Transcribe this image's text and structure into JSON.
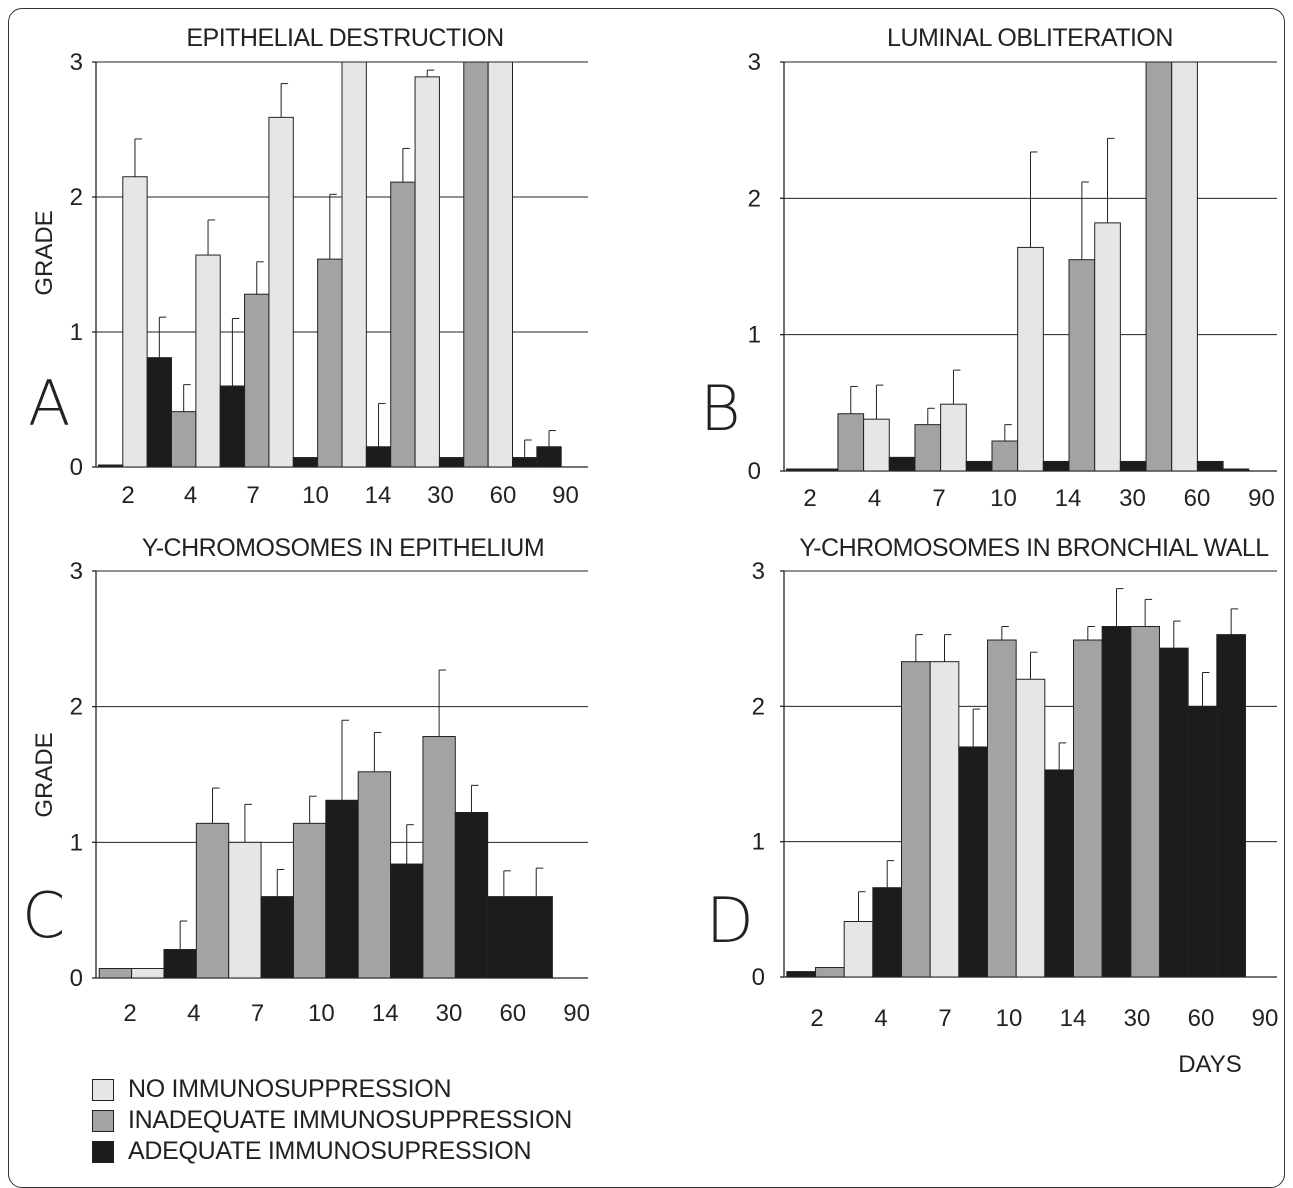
{
  "legend": {
    "none_label": "NO IMMUNOSUPPRESSION",
    "inadequate_label": "INADEQUATE IMMUNOSUPPRESSION",
    "adequate_label": "ADEQUATE IMMUNOSUPRESSION"
  },
  "colors": {
    "none": "#e6e6e6",
    "inadequate": "#a3a3a3",
    "adequate": "#1c1c1c"
  },
  "days_label": "DAYS",
  "chart_data": [
    {
      "type": "bar",
      "panel_letter": "A",
      "title": "EPITHELIAL DESTRUCTION",
      "ylabel": "GRADE",
      "xlabel": "",
      "ylim": [
        0,
        3
      ],
      "yticks": [
        "0",
        "1",
        "2",
        "3"
      ],
      "categories": [
        "2",
        "4",
        "7",
        "10",
        "14",
        "30",
        "60",
        "90"
      ],
      "series": [
        {
          "name": "NO IMMUNOSUPPRESSION",
          "values": [
            2.15,
            1.57,
            2.59,
            3.0,
            2.89,
            3.0,
            null,
            null
          ],
          "errors": [
            0.28,
            0.26,
            0.25,
            0,
            0.05,
            0,
            null,
            null
          ]
        },
        {
          "name": "INADEQUATE IMMUNOSUPPRESSION",
          "values": [
            null,
            0.41,
            1.28,
            1.54,
            2.11,
            3.0,
            null,
            null
          ],
          "errors": [
            null,
            0.2,
            0.24,
            0.48,
            0.25,
            0,
            null,
            null
          ]
        },
        {
          "name": "ADEQUATE IMMUNOSUPRESSION",
          "values": [
            0.01,
            0.81,
            0.6,
            0.07,
            0.15,
            0.07,
            0.07,
            0.15
          ],
          "errors": [
            0,
            0.3,
            0.5,
            0,
            0.32,
            0,
            0.13,
            0.12
          ]
        }
      ],
      "grid": true
    },
    {
      "type": "bar",
      "panel_letter": "B",
      "title": "LUMINAL OBLITERATION",
      "ylabel": "",
      "xlabel": "",
      "ylim": [
        0,
        3
      ],
      "yticks": [
        "0",
        "1",
        "2",
        "3"
      ],
      "categories": [
        "2",
        "4",
        "7",
        "10",
        "14",
        "30",
        "60",
        "90"
      ],
      "series": [
        {
          "name": "NO IMMUNOSUPPRESSION",
          "values": [
            null,
            0.38,
            0.49,
            1.64,
            1.82,
            3.0,
            null,
            null
          ],
          "errors": [
            null,
            0.25,
            0.25,
            0.7,
            0.62,
            0,
            null,
            null
          ]
        },
        {
          "name": "INADEQUATE IMMUNOSUPPRESSION",
          "values": [
            null,
            0.42,
            0.34,
            0.22,
            1.55,
            3.0,
            null,
            null
          ],
          "errors": [
            null,
            0.2,
            0.12,
            0.12,
            0.57,
            0,
            null,
            null
          ]
        },
        {
          "name": "ADEQUATE IMMUNOSUPRESSION",
          "values": [
            0.0,
            0.01,
            0.1,
            0.07,
            0.07,
            0.07,
            0.07,
            0.0
          ],
          "errors": [
            0,
            0,
            0,
            0,
            0,
            0,
            0,
            0
          ]
        }
      ],
      "grid": true
    },
    {
      "type": "bar",
      "panel_letter": "C",
      "title": "Y-CHROMOSOMES IN EPITHELIUM",
      "ylabel": "GRADE",
      "xlabel": "",
      "ylim": [
        0,
        3
      ],
      "yticks": [
        "0",
        "1",
        "2",
        "3"
      ],
      "categories": [
        "2",
        "4",
        "7",
        "10",
        "14",
        "30",
        "60",
        "90"
      ],
      "series": [
        {
          "name": "NO IMMUNOSUPPRESSION",
          "values": [
            0.07,
            1.0,
            null,
            null,
            null,
            null,
            null,
            null
          ],
          "errors": [
            0,
            0.28,
            null,
            null,
            null,
            null,
            null,
            null
          ]
        },
        {
          "name": "INADEQUATE IMMUNOSUPPRESSION",
          "values": [
            0.07,
            1.14,
            1.14,
            1.52,
            1.78,
            null,
            null,
            null
          ],
          "errors": [
            0,
            0.26,
            0.2,
            0.29,
            0.49,
            null,
            null,
            null
          ]
        },
        {
          "name": "ADEQUATE IMMUNOSUPRESSION",
          "values": [
            null,
            0.21,
            0.6,
            1.31,
            0.84,
            1.22,
            0.6,
            0.6
          ],
          "errors": [
            null,
            0.21,
            0.2,
            0.59,
            0.29,
            0.2,
            0.19,
            0.21
          ]
        }
      ],
      "grid": true
    },
    {
      "type": "bar",
      "panel_letter": "D",
      "title": "Y-CHROMOSOMES IN BRONCHIAL WALL",
      "ylabel": "",
      "xlabel": "DAYS",
      "ylim": [
        0,
        3
      ],
      "yticks": [
        "0",
        "1",
        "2",
        "3"
      ],
      "categories": [
        "2",
        "4",
        "7",
        "10",
        "14",
        "30",
        "60",
        "90"
      ],
      "series": [
        {
          "name": "NO IMMUNOSUPPRESSION",
          "values": [
            0.41,
            2.33,
            2.2,
            null,
            null,
            null,
            null,
            null
          ],
          "errors": [
            0.22,
            0.2,
            0.2,
            null,
            null,
            null,
            null,
            null
          ]
        },
        {
          "name": "INADEQUATE IMMUNOSUPPRESSION",
          "values": [
            0.07,
            2.33,
            2.49,
            2.49,
            2.59,
            null,
            null,
            null
          ],
          "errors": [
            0,
            0.2,
            0.1,
            0.1,
            0.2,
            null,
            null,
            null
          ]
        },
        {
          "name": "ADEQUATE IMMUNOSUPRESSION",
          "values": [
            0.04,
            0.66,
            1.7,
            1.53,
            2.59,
            2.43,
            2.0,
            2.53
          ],
          "errors": [
            0,
            0.2,
            0.28,
            0.2,
            0.28,
            0.2,
            0.25,
            0.19
          ]
        }
      ],
      "grid": true
    }
  ]
}
